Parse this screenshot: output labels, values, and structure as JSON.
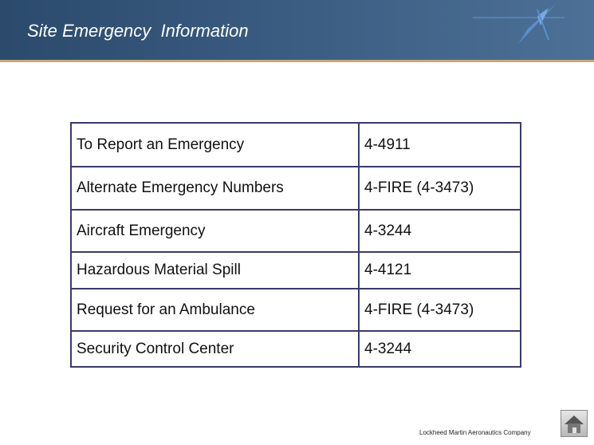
{
  "header": {
    "title": "Site Emergency  Information"
  },
  "table": {
    "rows": [
      {
        "label": "To Report an Emergency",
        "number": "4-4911"
      },
      {
        "label": "Alternate Emergency Numbers",
        "number": "4-FIRE (4-3473)"
      },
      {
        "label": "Aircraft Emergency",
        "number": "4-3244"
      },
      {
        "label": "Hazardous Material Spill",
        "number": "4-4121"
      },
      {
        "label": "Request for an Ambulance",
        "number": "4-FIRE (4-3473)"
      },
      {
        "label": "Security Control Center",
        "number": "4-3244"
      }
    ]
  },
  "footer": {
    "company": "Lockheed Martin Aeronautics Company"
  },
  "icons": {
    "logo": "lockheed-martin-star-logo-icon",
    "home": "home-icon"
  }
}
